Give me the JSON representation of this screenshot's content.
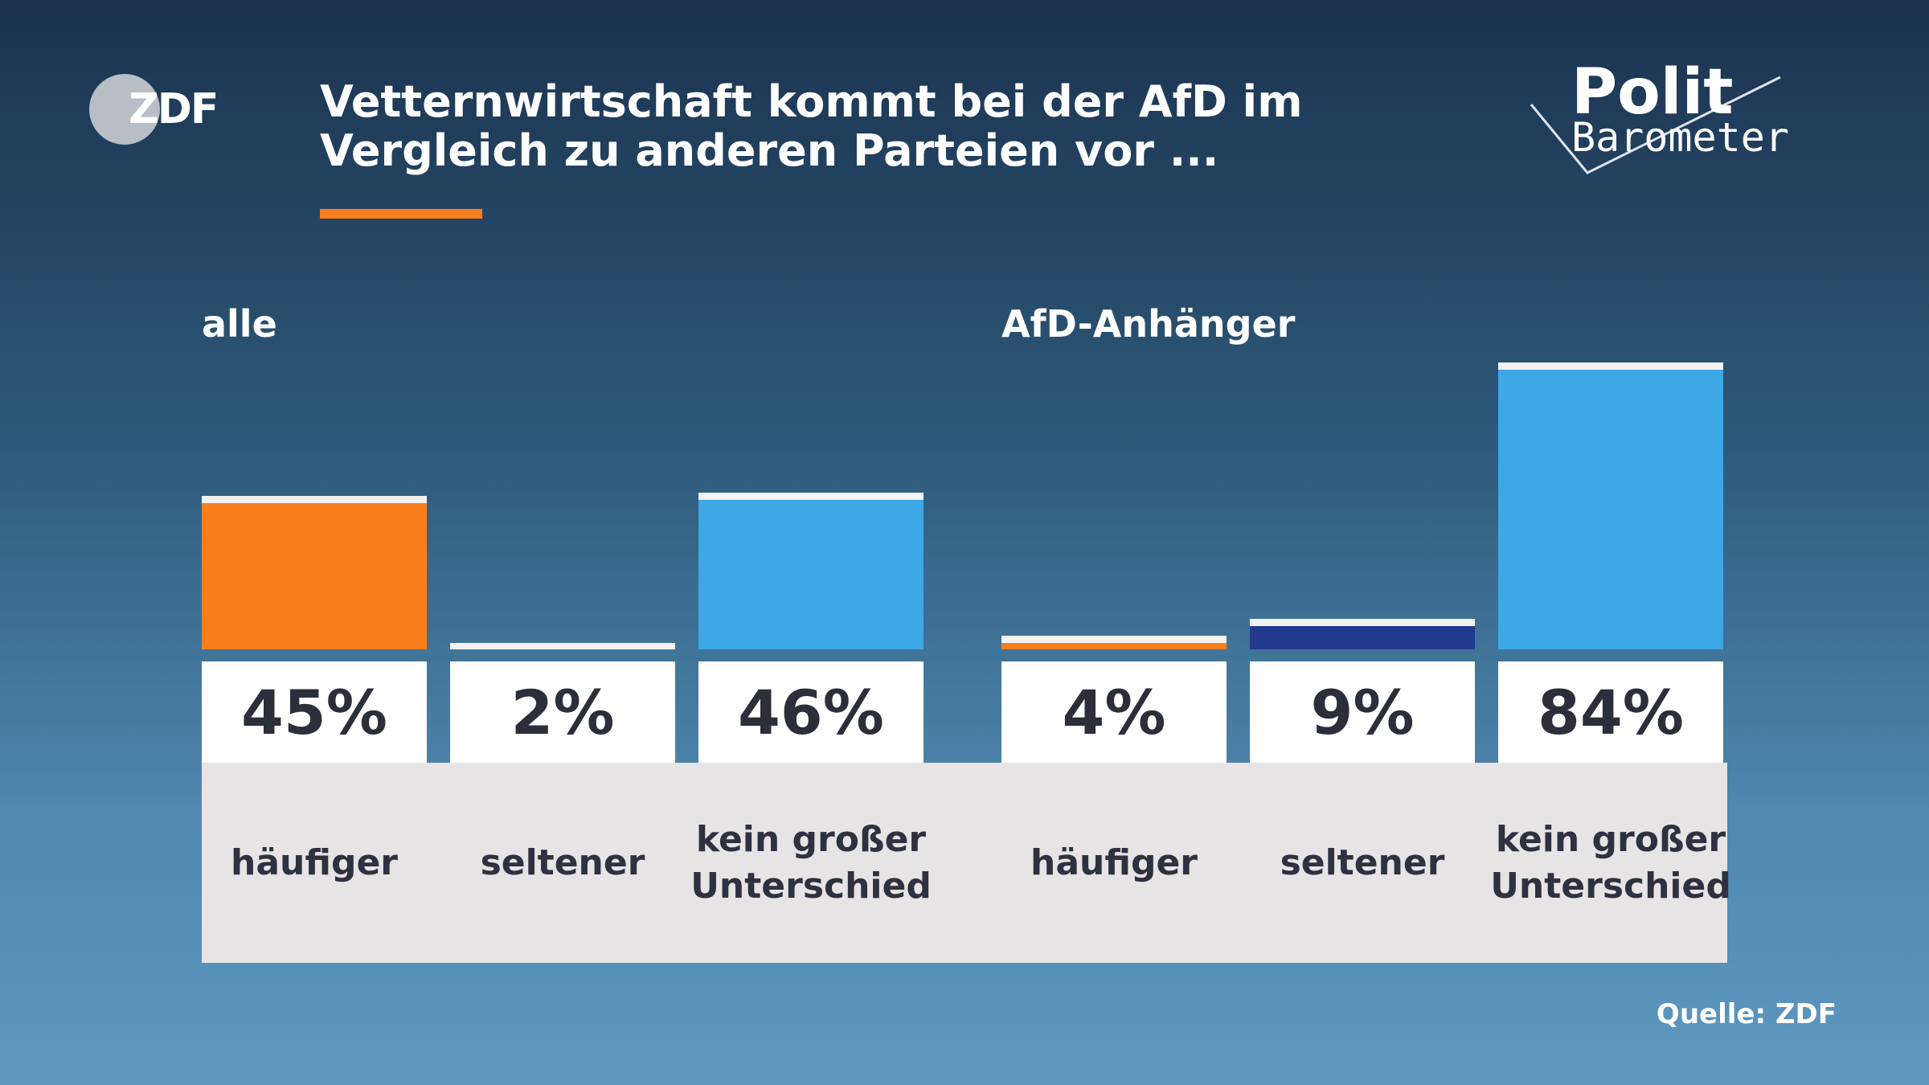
{
  "title": "Vetternwirtschaft kommt bei der AfD im Vergleich zu anderen Parteien vor ...",
  "logo": "ZDF",
  "brand": {
    "top": "Polit",
    "bottom": "Barometer"
  },
  "source": "Quelle: ZDF",
  "chart_data": [
    {
      "type": "bar",
      "title": "alle",
      "categories": [
        "häufiger",
        "seltener",
        "kein großer Unterschied"
      ],
      "values": [
        45,
        2,
        46
      ],
      "value_labels": [
        "45%",
        "2%",
        "46%"
      ],
      "colors": [
        "#fb7e1c",
        "#e8e8ec",
        "#3ea7e6"
      ]
    },
    {
      "type": "bar",
      "title": "AfD-Anhänger",
      "categories": [
        "häufiger",
        "seltener",
        "kein großer Unterschied"
      ],
      "values": [
        4,
        9,
        84
      ],
      "value_labels": [
        "4%",
        "9%",
        "84%"
      ],
      "colors": [
        "#fb7e1c",
        "#213a8f",
        "#3ea7e6"
      ]
    }
  ]
}
